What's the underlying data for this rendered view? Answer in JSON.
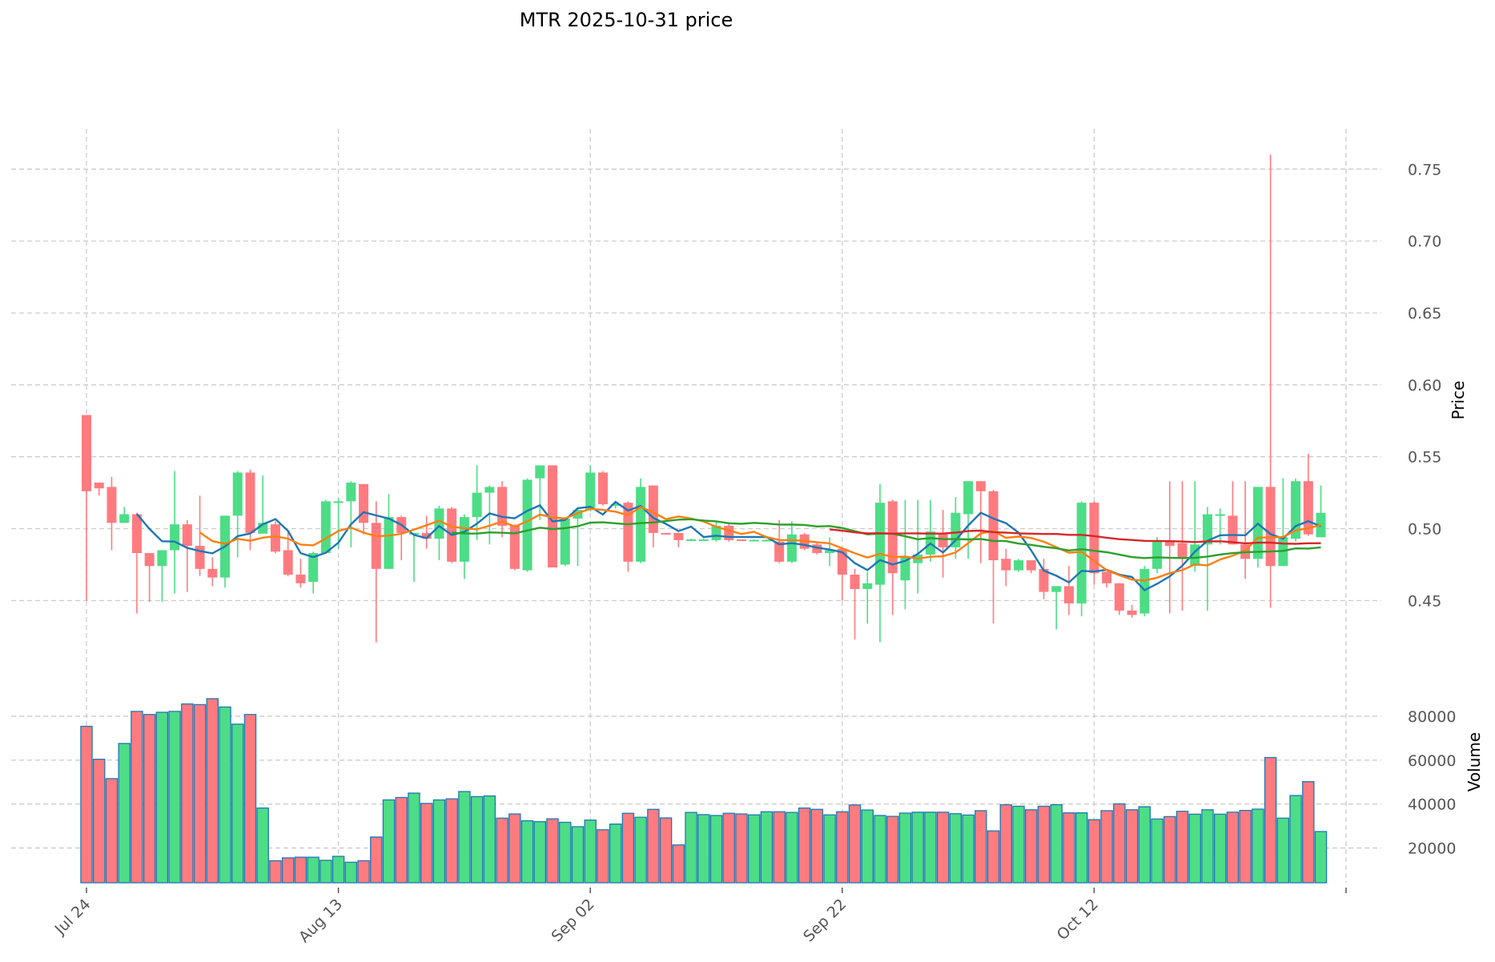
{
  "chart_data": {
    "type": "candlestick",
    "title": "MTR  2025-10-31  price",
    "ylabel": "Price",
    "volume_ylabel": "Volume",
    "start_date": "2025-07-24",
    "x_tick_labels": [
      "Jul 24",
      "Aug 13",
      "Sep 02",
      "Sep 22",
      "Oct 12",
      ""
    ],
    "x_tick_indices": [
      0,
      20,
      40,
      60,
      80,
      100
    ],
    "price_ticks": [
      "0.45",
      "0.50",
      "0.55",
      "0.60",
      "0.65",
      "0.70",
      "0.75"
    ],
    "price_ylim": [
      0.404,
      0.778
    ],
    "volume_ticks": [
      "20000",
      "40000",
      "60000",
      "80000"
    ],
    "volume_ylim": [
      4170,
      92000
    ],
    "moving_averages": [
      {
        "window": 5,
        "color": "#1f77b4"
      },
      {
        "window": 10,
        "color": "#ff7f0e"
      },
      {
        "window": 30,
        "color": "#2ca02c"
      },
      {
        "window": 60,
        "color": "#d62728"
      }
    ],
    "colors": {
      "up": "#4ddd86",
      "down": "#ff7b80",
      "volume_edge": "#1f77b4",
      "grid": "#cccccc"
    },
    "ohlc": [
      [
        0.579,
        0.579,
        0.45,
        0.526
      ],
      [
        0.532,
        0.532,
        0.523,
        0.528
      ],
      [
        0.529,
        0.536,
        0.485,
        0.504
      ],
      [
        0.504,
        0.515,
        0.504,
        0.51
      ],
      [
        0.51,
        0.511,
        0.441,
        0.483
      ],
      [
        0.483,
        0.483,
        0.449,
        0.474
      ],
      [
        0.474,
        0.485,
        0.449,
        0.485
      ],
      [
        0.485,
        0.54,
        0.455,
        0.503
      ],
      [
        0.503,
        0.506,
        0.456,
        0.488
      ],
      [
        0.488,
        0.523,
        0.467,
        0.472
      ],
      [
        0.472,
        0.48,
        0.46,
        0.466
      ],
      [
        0.466,
        0.509,
        0.459,
        0.509
      ],
      [
        0.509,
        0.54,
        0.48,
        0.539
      ],
      [
        0.539,
        0.541,
        0.485,
        0.497
      ],
      [
        0.4965,
        0.537,
        0.4965,
        0.504
      ],
      [
        0.503,
        0.505,
        0.483,
        0.484
      ],
      [
        0.485,
        0.499,
        0.467,
        0.468
      ],
      [
        0.468,
        0.479,
        0.459,
        0.462
      ],
      [
        0.463,
        0.484,
        0.455,
        0.483
      ],
      [
        0.483,
        0.52,
        0.483,
        0.519
      ],
      [
        0.518,
        0.521,
        0.486,
        0.519
      ],
      [
        0.519,
        0.533,
        0.487,
        0.532
      ],
      [
        0.531,
        0.531,
        0.496,
        0.504
      ],
      [
        0.504,
        0.519,
        0.421,
        0.472
      ],
      [
        0.472,
        0.524,
        0.472,
        0.508
      ],
      [
        0.508,
        0.509,
        0.478,
        0.497
      ],
      [
        0.496,
        0.497,
        0.463,
        0.497
      ],
      [
        0.497,
        0.509,
        0.486,
        0.493
      ],
      [
        0.493,
        0.516,
        0.478,
        0.514
      ],
      [
        0.514,
        0.515,
        0.476,
        0.477
      ],
      [
        0.477,
        0.51,
        0.465,
        0.508
      ],
      [
        0.508,
        0.544,
        0.492,
        0.525
      ],
      [
        0.525,
        0.53,
        0.489,
        0.529
      ],
      [
        0.529,
        0.533,
        0.494,
        0.502
      ],
      [
        0.502,
        0.503,
        0.471,
        0.472
      ],
      [
        0.471,
        0.535,
        0.47,
        0.534
      ],
      [
        0.535,
        0.544,
        0.506,
        0.544
      ],
      [
        0.544,
        0.544,
        0.473,
        0.473
      ],
      [
        0.475,
        0.508,
        0.474,
        0.507
      ],
      [
        0.507,
        0.514,
        0.474,
        0.513
      ],
      [
        0.513,
        0.544,
        0.512,
        0.539
      ],
      [
        0.539,
        0.54,
        0.516,
        0.517
      ],
      [
        0.516,
        0.518,
        0.514,
        0.517
      ],
      [
        0.518,
        0.519,
        0.47,
        0.477
      ],
      [
        0.477,
        0.535,
        0.476,
        0.529
      ],
      [
        0.53,
        0.53,
        0.487,
        0.497
      ],
      [
        0.497,
        0.497,
        0.496,
        0.4965
      ],
      [
        0.497,
        0.497,
        0.487,
        0.492
      ],
      [
        0.492,
        0.493,
        0.492,
        0.4925
      ],
      [
        0.492,
        0.493,
        0.492,
        0.4925
      ],
      [
        0.492,
        0.505,
        0.491,
        0.502
      ],
      [
        0.502,
        0.503,
        0.491,
        0.492
      ],
      [
        0.4925,
        0.4925,
        0.492,
        0.492
      ],
      [
        0.492,
        0.4925,
        0.492,
        0.4922
      ],
      [
        0.492,
        0.4925,
        0.492,
        0.4922
      ],
      [
        0.491,
        0.506,
        0.476,
        0.477
      ],
      [
        0.477,
        0.505,
        0.476,
        0.496
      ],
      [
        0.496,
        0.497,
        0.485,
        0.486
      ],
      [
        0.489,
        0.491,
        0.482,
        0.483
      ],
      [
        0.483,
        0.494,
        0.474,
        0.485
      ],
      [
        0.486,
        0.486,
        0.45,
        0.468
      ],
      [
        0.468,
        0.472,
        0.423,
        0.458
      ],
      [
        0.458,
        0.47,
        0.434,
        0.462
      ],
      [
        0.461,
        0.531,
        0.421,
        0.518
      ],
      [
        0.519,
        0.52,
        0.44,
        0.469
      ],
      [
        0.464,
        0.52,
        0.444,
        0.481
      ],
      [
        0.476,
        0.52,
        0.455,
        0.482
      ],
      [
        0.482,
        0.52,
        0.477,
        0.498
      ],
      [
        0.497,
        0.513,
        0.466,
        0.487
      ],
      [
        0.487,
        0.522,
        0.479,
        0.511
      ],
      [
        0.51,
        0.533,
        0.479,
        0.533
      ],
      [
        0.533,
        0.533,
        0.476,
        0.526
      ],
      [
        0.526,
        0.527,
        0.434,
        0.478
      ],
      [
        0.479,
        0.486,
        0.46,
        0.471
      ],
      [
        0.471,
        0.479,
        0.47,
        0.478
      ],
      [
        0.478,
        0.478,
        0.469,
        0.471
      ],
      [
        0.472,
        0.479,
        0.451,
        0.456
      ],
      [
        0.456,
        0.46,
        0.43,
        0.46
      ],
      [
        0.46,
        0.474,
        0.44,
        0.448
      ],
      [
        0.448,
        0.519,
        0.439,
        0.518
      ],
      [
        0.518,
        0.519,
        0.461,
        0.469
      ],
      [
        0.47,
        0.47,
        0.459,
        0.462
      ],
      [
        0.462,
        0.462,
        0.44,
        0.443
      ],
      [
        0.443,
        0.447,
        0.438,
        0.44
      ],
      [
        0.441,
        0.474,
        0.439,
        0.472
      ],
      [
        0.472,
        0.494,
        0.469,
        0.491
      ],
      [
        0.491,
        0.533,
        0.441,
        0.488
      ],
      [
        0.49,
        0.533,
        0.443,
        0.48
      ],
      [
        0.474,
        0.533,
        0.47,
        0.489
      ],
      [
        0.489,
        0.515,
        0.443,
        0.51
      ],
      [
        0.509,
        0.514,
        0.489,
        0.51
      ],
      [
        0.509,
        0.533,
        0.489,
        0.489
      ],
      [
        0.489,
        0.533,
        0.465,
        0.479
      ],
      [
        0.479,
        0.529,
        0.473,
        0.529
      ],
      [
        0.529,
        0.76,
        0.445,
        0.474
      ],
      [
        0.474,
        0.535,
        0.474,
        0.494
      ],
      [
        0.493,
        0.535,
        0.491,
        0.533
      ],
      [
        0.533,
        0.552,
        0.495,
        0.496
      ],
      [
        0.494,
        0.53,
        0.494,
        0.511
      ]
    ],
    "volume": [
      75400,
      60400,
      51600,
      67600,
      82200,
      80800,
      81800,
      82200,
      85600,
      85300,
      88000,
      84200,
      76400,
      80800,
      38200,
      14200,
      15500,
      15800,
      15800,
      14400,
      16200,
      13500,
      14200,
      25000,
      41900,
      43000,
      45000,
      40300,
      41900,
      42400,
      45700,
      43400,
      43700,
      33600,
      35500,
      32400,
      32000,
      33300,
      31700,
      29700,
      32700,
      28300,
      30900,
      35800,
      34000,
      37600,
      33700,
      21400,
      36200,
      35200,
      34800,
      35800,
      35500,
      35100,
      36500,
      36500,
      36200,
      38200,
      37600,
      35100,
      36500,
      39600,
      37300,
      34800,
      34400,
      35900,
      36300,
      36300,
      36300,
      35600,
      35000,
      37000,
      27800,
      39700,
      39000,
      37400,
      39000,
      39700,
      36000,
      36000,
      32900,
      37000,
      40100,
      37400,
      38800,
      33200,
      34300,
      36700,
      35400,
      37400,
      35400,
      36300,
      37100,
      37700,
      61200,
      33600,
      43900,
      50200,
      27500
    ]
  }
}
